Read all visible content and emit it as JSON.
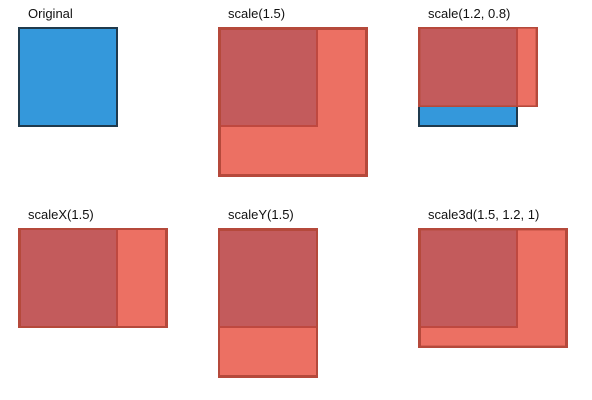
{
  "colors": {
    "original_fill": "#3498db",
    "original_border": "#1f3a4d",
    "transformed_fill": "#e74c3c",
    "transformed_border": "#b5493b",
    "background": "#ffffff"
  },
  "demos": [
    {
      "label": "Original",
      "transform": "none"
    },
    {
      "label": "scale(1.5)",
      "transform": "scale(1.5)"
    },
    {
      "label": "scale(1.2, 0.8)",
      "transform": "scale(1.2, 0.8)"
    },
    {
      "label": "scaleX(1.5)",
      "transform": "scaleX(1.5)"
    },
    {
      "label": "scaleY(1.5)",
      "transform": "scaleY(1.5)"
    },
    {
      "label": "scale3d(1.5, 1.2, 1)",
      "transform": "scale3d(1.5, 1.2, 1)"
    }
  ]
}
